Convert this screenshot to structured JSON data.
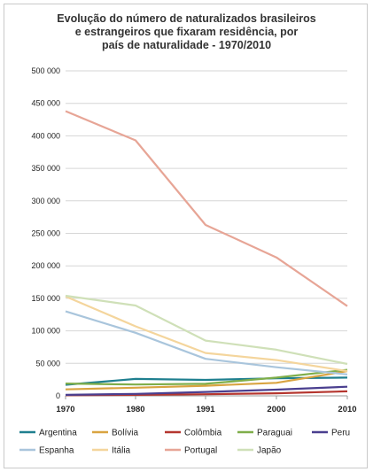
{
  "chart_data": {
    "type": "line",
    "title_lines": [
      "Evolução do número de naturalizados brasileiros",
      "e estrangeiros que fixaram residência, por",
      "país de naturalidade - 1970/2010"
    ],
    "x": [
      "1970",
      "1980",
      "1991",
      "2000",
      "2010"
    ],
    "ylim": [
      0,
      500000
    ],
    "yticks": [
      "0",
      "50 000",
      "100 000",
      "150 000",
      "200 000",
      "250 000",
      "300 000",
      "350 000",
      "400 000",
      "450 000",
      "500 000"
    ],
    "grid": true,
    "legend_position": "bottom",
    "series": [
      {
        "name": "Argentina",
        "color": "#1f7f8f",
        "values": [
          17000,
          26000,
          24500,
          27000,
          28000
        ]
      },
      {
        "name": "Bolívia",
        "color": "#d9a441",
        "values": [
          10000,
          12500,
          15500,
          20000,
          38000
        ]
      },
      {
        "name": "Colômbia",
        "color": "#b5362f",
        "values": [
          1000,
          1500,
          2500,
          4000,
          7000
        ]
      },
      {
        "name": "Paraguai",
        "color": "#7fae4a",
        "values": [
          19000,
          17500,
          18500,
          28000,
          40000
        ]
      },
      {
        "name": "Peru",
        "color": "#4a3f8f",
        "values": [
          1500,
          3000,
          6000,
          9500,
          14000
        ]
      },
      {
        "name": "Espanha",
        "color": "#a9c5dc",
        "values": [
          130000,
          97000,
          57000,
          44000,
          33000
        ]
      },
      {
        "name": "Itália",
        "color": "#f4d59c",
        "values": [
          153000,
          107000,
          66000,
          55000,
          38000
        ]
      },
      {
        "name": "Portugal",
        "color": "#e7a596",
        "values": [
          438000,
          393000,
          263000,
          213000,
          138000
        ]
      },
      {
        "name": "Japão",
        "color": "#cfe0b8",
        "values": [
          154000,
          139000,
          85000,
          71000,
          49000
        ]
      }
    ]
  }
}
